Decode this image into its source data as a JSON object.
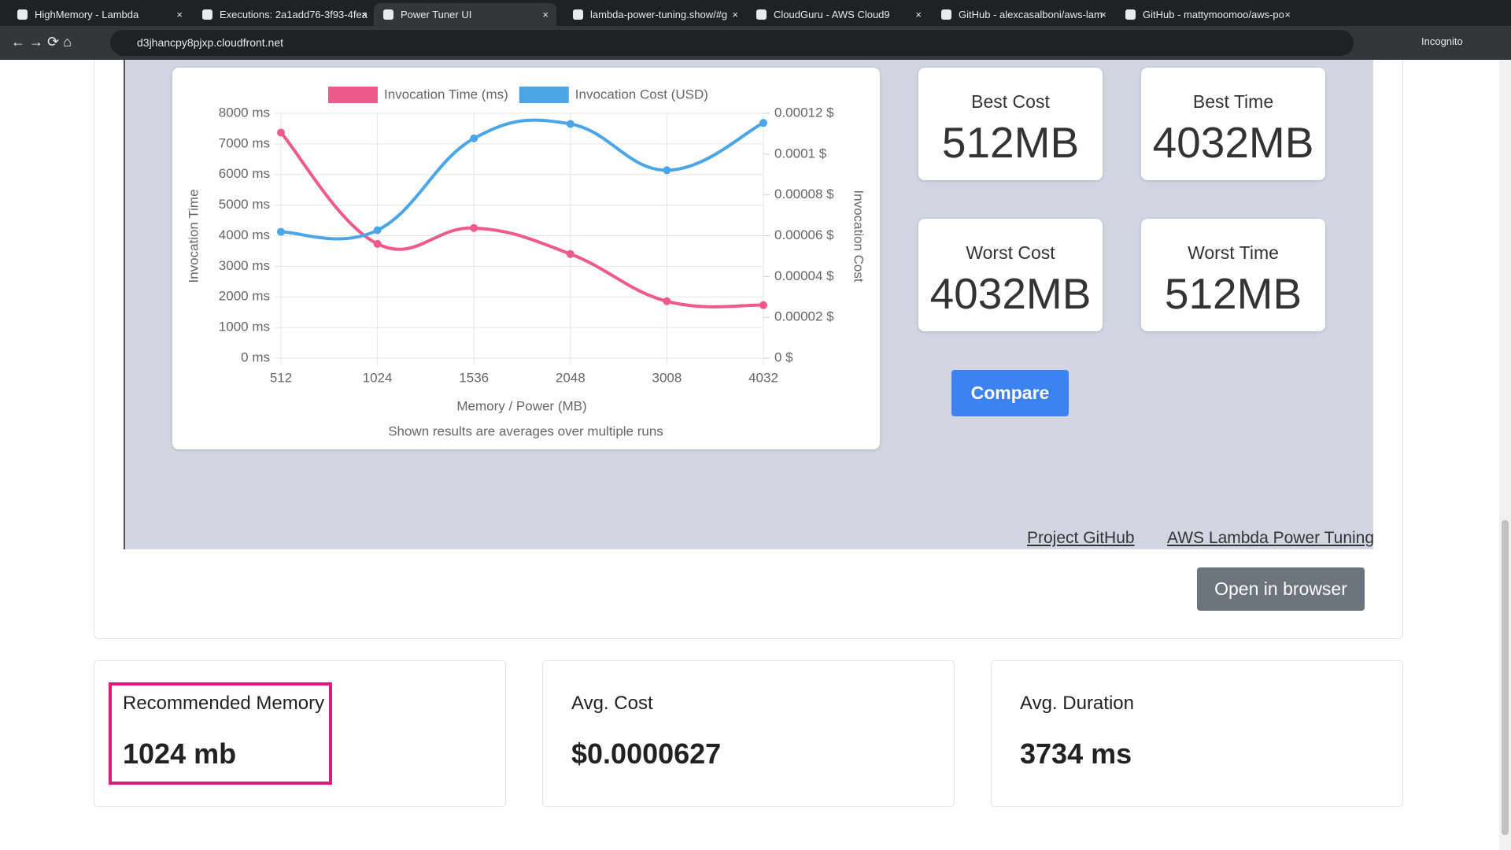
{
  "browser": {
    "tabs": [
      "HighMemory - Lambda",
      "Executions: 2a1add76-3f93-4fea",
      "Power Tuner UI",
      "lambda-power-tuning.show/#g",
      "CloudGuru - AWS Cloud9",
      "GitHub - alexcasalboni/aws-lam",
      "GitHub - mattymoomoo/aws-po"
    ],
    "url": "d3jhancpy8pjxp.cloudfront.net",
    "profile": "Incognito"
  },
  "chart_data": {
    "type": "line",
    "x_label": "Memory / Power (MB)",
    "y_label": "Invocation Time",
    "y2_label": "Invocation Cost",
    "note": "Shown results are averages over multiple runs",
    "categories": [
      "512",
      "1024",
      "1536",
      "2048",
      "3008",
      "4032"
    ],
    "series": [
      {
        "name": "Invocation Time (ms)",
        "color": "#ef5a8c",
        "values": [
          7370,
          3734,
          4252,
          3402,
          1858,
          1732
        ]
      },
      {
        "name": "Invocation Cost (USD)",
        "color": "#4aa6e6",
        "axis": "y2",
        "values": [
          6.19e-05,
          6.27e-05,
          0.0001077,
          0.0001148,
          9.21e-05,
          0.0001153
        ]
      }
    ],
    "ylim": [
      0,
      8000
    ],
    "yticks": [
      {
        "value": 0,
        "label": "0 ms"
      },
      {
        "value": 1000,
        "label": "1000 ms"
      },
      {
        "value": 2000,
        "label": "2000 ms"
      },
      {
        "value": 3000,
        "label": "3000 ms"
      },
      {
        "value": 4000,
        "label": "4000 ms"
      },
      {
        "value": 5000,
        "label": "5000 ms"
      },
      {
        "value": 6000,
        "label": "6000 ms"
      },
      {
        "value": 7000,
        "label": "7000 ms"
      },
      {
        "value": 8000,
        "label": "8000 ms"
      }
    ],
    "y2lim": [
      0,
      0.00012
    ],
    "y2ticks": [
      {
        "value": 0,
        "label": "0 $"
      },
      {
        "value": 2e-05,
        "label": "0.00002 $"
      },
      {
        "value": 4e-05,
        "label": "0.00004 $"
      },
      {
        "value": 6e-05,
        "label": "0.00006 $"
      },
      {
        "value": 8e-05,
        "label": "0.00008 $"
      },
      {
        "value": 0.0001,
        "label": "0.0001 $"
      },
      {
        "value": 0.00012,
        "label": "0.00012 $"
      }
    ],
    "grid": true,
    "legend": "top"
  },
  "stats": [
    {
      "label": "Best Cost",
      "value": "512MB"
    },
    {
      "label": "Best Time",
      "value": "4032MB"
    },
    {
      "label": "Worst Cost",
      "value": "4032MB"
    },
    {
      "label": "Worst Time",
      "value": "512MB"
    }
  ],
  "compare": "Compare",
  "links": [
    "Project GitHub",
    "AWS Lambda Power Tuning"
  ],
  "open_button": "Open in browser",
  "summary": [
    {
      "label": "Recommended Memory",
      "value": "1024 mb"
    },
    {
      "label": "Avg. Cost",
      "value": "$0.0000627"
    },
    {
      "label": "Avg. Duration",
      "value": "3734 ms"
    }
  ]
}
